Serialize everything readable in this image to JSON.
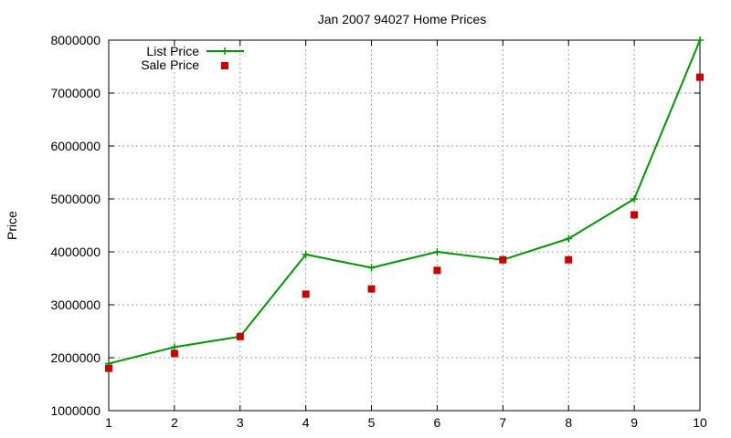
{
  "chart_data": {
    "type": "line",
    "title": "Jan 2007 94027 Home Prices",
    "xlabel": "",
    "ylabel": "Price",
    "x": [
      1,
      2,
      3,
      4,
      5,
      6,
      7,
      8,
      9,
      10
    ],
    "xlim": [
      1,
      10
    ],
    "ylim": [
      1000000,
      8000000
    ],
    "xticks": [
      "1",
      "2",
      "3",
      "4",
      "5",
      "6",
      "7",
      "8",
      "9",
      "10"
    ],
    "yticks": [
      "1000000",
      "2000000",
      "3000000",
      "4000000",
      "5000000",
      "6000000",
      "7000000",
      "8000000"
    ],
    "grid": true,
    "legend_position": "top-left",
    "series": [
      {
        "name": "List Price",
        "style": "line+cross-markers",
        "color": "#009900",
        "values": [
          1890000,
          2200000,
          2400000,
          3950000,
          3700000,
          4000000,
          3850000,
          4250000,
          5000000,
          8000000
        ]
      },
      {
        "name": "Sale Price",
        "style": "square-markers",
        "color": "#cc0000",
        "values": [
          1800000,
          2080000,
          2400000,
          3200000,
          3300000,
          3650000,
          3850000,
          3850000,
          4700000,
          7300000
        ]
      }
    ]
  }
}
